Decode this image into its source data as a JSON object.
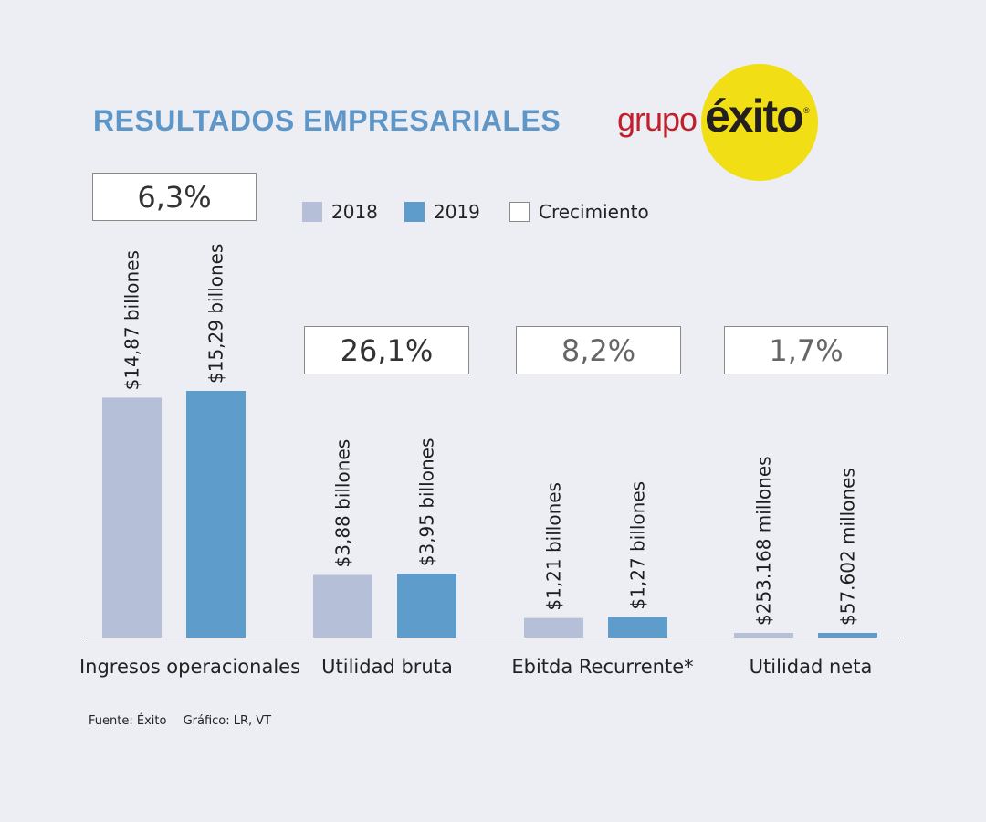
{
  "title": "RESULTADOS EMPRESARIALES",
  "logo": {
    "text_grupo": "grupo",
    "text_brand": "éxito",
    "mark": "®",
    "colors": {
      "circle": "#f1de14",
      "grupo": "#c0202c",
      "brand": "#231f20"
    }
  },
  "legend": [
    {
      "label": "2018",
      "color": "#b6bfd8"
    },
    {
      "label": "2019",
      "color": "#5e9ccc"
    },
    {
      "label": "Crecimiento",
      "color": "#ffffff"
    }
  ],
  "source": {
    "fuente": "Fuente: Éxito",
    "grafico": "Gráfico: LR, VT"
  },
  "chart_data": {
    "type": "bar",
    "title": "RESULTADOS EMPRESARIALES",
    "categories": [
      "Ingresos operacionales",
      "Utilidad bruta",
      "Ebitda Recurrente*",
      "Utilidad neta"
    ],
    "series": [
      {
        "name": "2018",
        "color": "#b6bfd8",
        "values": [
          14.87,
          3.88,
          1.21,
          0.253168
        ]
      },
      {
        "name": "2019",
        "color": "#5e9ccc",
        "values": [
          15.29,
          3.95,
          1.27,
          0.057602
        ]
      }
    ],
    "value_labels": [
      [
        "$14,87 billones",
        "$15,29 billones"
      ],
      [
        "$3,88 billones",
        "$3,95 billones"
      ],
      [
        "$1,21 billones",
        "$1,27 billones"
      ],
      [
        "$253.168 millones",
        "$57.602 millones"
      ]
    ],
    "units": "billones de pesos",
    "growth": [
      "6,3%",
      "26,1%",
      "8,2%",
      "1,7%"
    ],
    "ylim": [
      0,
      18
    ],
    "xlabel": "",
    "ylabel": "",
    "legend_position": "top-center",
    "grid": false
  }
}
